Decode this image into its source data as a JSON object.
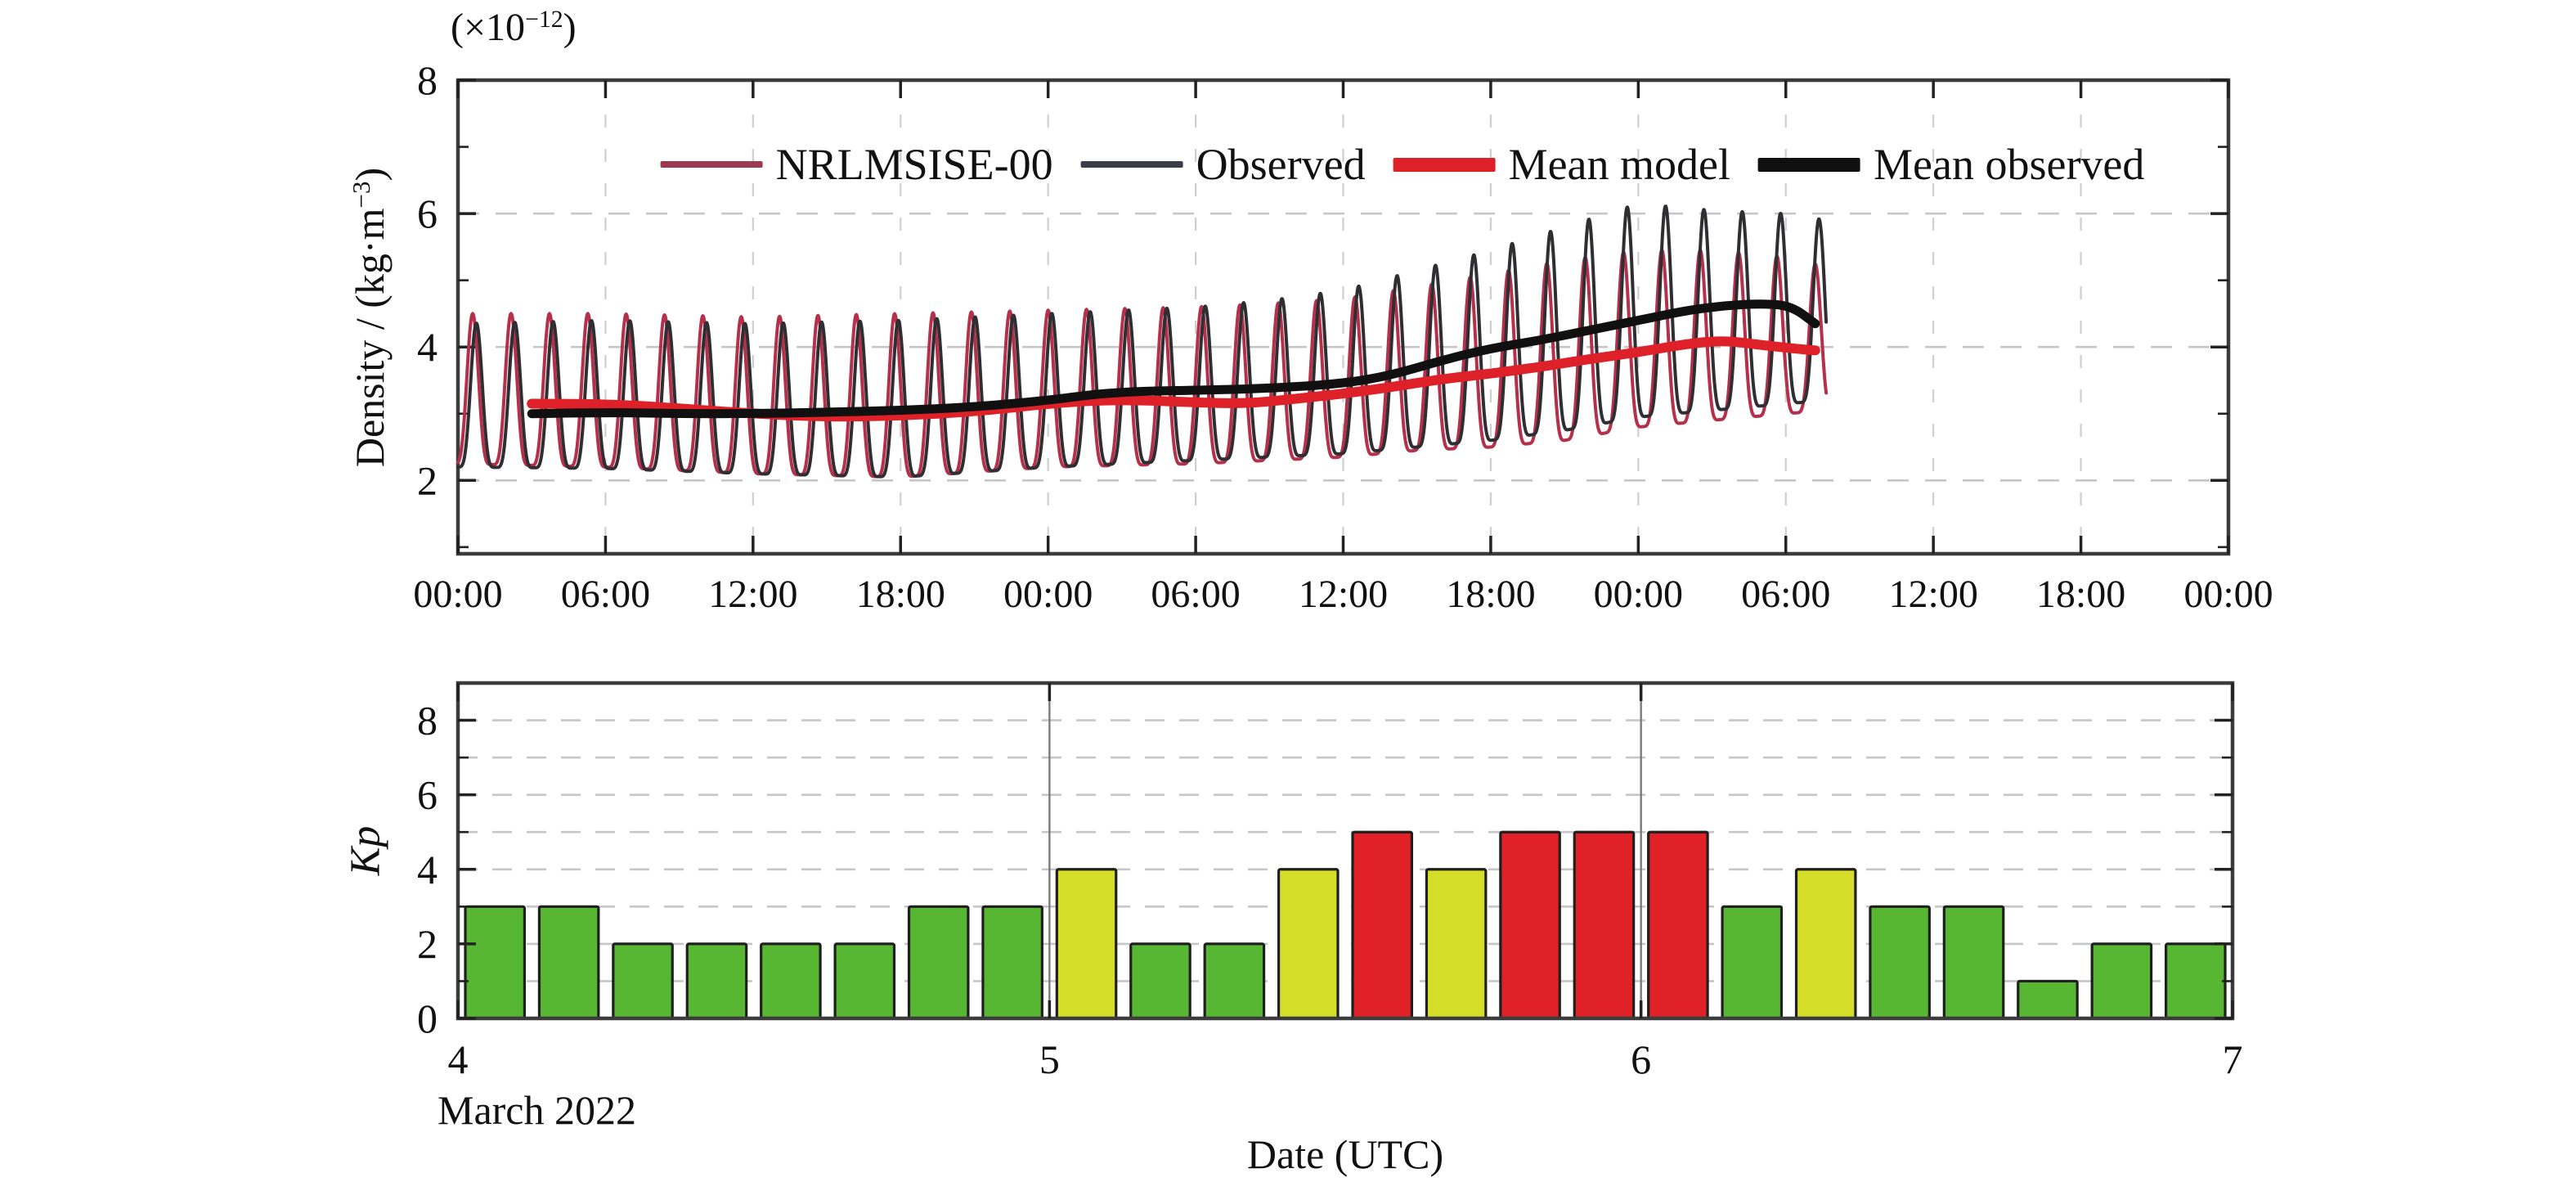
{
  "figure": {
    "background": "#ffffff",
    "border_color": "#3c3c3c",
    "grid_color": "#c6c6c6",
    "tick_color": "#222222",
    "text_color": "#111111"
  },
  "chart_data": [
    {
      "type": "line",
      "title": "",
      "ylabel": "Density / (kg·m⁻³)",
      "ylabel_prefix": "Density / (kg·m",
      "ylabel_sup": "−3",
      "ylabel_suffix": ")",
      "y_unit": "(×10⁻¹²)",
      "y_unit_prefix": "(×10",
      "y_unit_sup": "−12",
      "y_unit_suffix": ")",
      "xlabel": "",
      "xlim_hours": [
        0,
        72
      ],
      "x_tick_step_hours": 6,
      "x_tick_labels": [
        "00:00",
        "06:00",
        "12:00",
        "18:00",
        "00:00",
        "06:00",
        "12:00",
        "18:00",
        "00:00",
        "06:00",
        "12:00",
        "18:00",
        "00:00"
      ],
      "ylim": [
        0.9,
        8
      ],
      "y_ticks": [
        2,
        4,
        6,
        8
      ],
      "y_minor_ticks": [
        1,
        3,
        5,
        7
      ],
      "grid": true,
      "legend_position": "top-center",
      "oscillation": {
        "period_hours": 1.56,
        "first_peak_hour": 0.75,
        "sharpness": 2.3,
        "model_phase_lead_hours": 0.15,
        "end_hour": 55.66
      },
      "series": [
        {
          "name": "NRLMSISE-00",
          "kind": "oscillating",
          "style": "thin",
          "color": "#b5304a",
          "legend_color": "#9d3a52",
          "envelope": [
            [
              0,
              2.25,
              4.5
            ],
            [
              6,
              2.2,
              4.5
            ],
            [
              12,
              2.1,
              4.45
            ],
            [
              18,
              2.05,
              4.5
            ],
            [
              24,
              2.2,
              4.55
            ],
            [
              30,
              2.25,
              4.6
            ],
            [
              33,
              2.3,
              4.65
            ],
            [
              36,
              2.35,
              4.72
            ],
            [
              39,
              2.45,
              4.9
            ],
            [
              42,
              2.5,
              5.1
            ],
            [
              45,
              2.6,
              5.3
            ],
            [
              48,
              2.8,
              5.45
            ],
            [
              51,
              2.9,
              5.45
            ],
            [
              54,
              3.0,
              5.35
            ],
            [
              55.7,
              3.05,
              5.2
            ]
          ]
        },
        {
          "name": "Observed",
          "kind": "oscillating",
          "style": "thin",
          "color": "#2e2e33",
          "legend_color": "#3e3e46",
          "envelope": [
            [
              0,
              2.2,
              4.35
            ],
            [
              6,
              2.18,
              4.4
            ],
            [
              12,
              2.1,
              4.35
            ],
            [
              18,
              2.05,
              4.4
            ],
            [
              24,
              2.2,
              4.5
            ],
            [
              30,
              2.3,
              4.6
            ],
            [
              33,
              2.35,
              4.7
            ],
            [
              36,
              2.4,
              4.85
            ],
            [
              39,
              2.5,
              5.15
            ],
            [
              42,
              2.6,
              5.45
            ],
            [
              45,
              2.75,
              5.8
            ],
            [
              48,
              2.95,
              6.15
            ],
            [
              51,
              3.05,
              6.05
            ],
            [
              54,
              3.15,
              6.0
            ],
            [
              55.7,
              3.2,
              5.9
            ]
          ]
        },
        {
          "name": "Mean model",
          "kind": "mean",
          "style": "thick",
          "color": "#de2128",
          "legend_color": "#de2128",
          "points": [
            [
              3,
              3.15
            ],
            [
              6,
              3.15
            ],
            [
              9,
              3.08
            ],
            [
              12,
              3.0
            ],
            [
              15,
              2.95
            ],
            [
              18,
              2.97
            ],
            [
              21,
              3.03
            ],
            [
              24,
              3.15
            ],
            [
              26,
              3.2
            ],
            [
              28,
              3.2
            ],
            [
              30,
              3.17
            ],
            [
              32,
              3.15
            ],
            [
              34,
              3.22
            ],
            [
              36,
              3.3
            ],
            [
              38,
              3.4
            ],
            [
              40,
              3.52
            ],
            [
              42,
              3.6
            ],
            [
              44,
              3.7
            ],
            [
              46,
              3.82
            ],
            [
              48,
              3.92
            ],
            [
              50,
              4.05
            ],
            [
              51.5,
              4.1
            ],
            [
              53,
              4.03
            ],
            [
              54.5,
              3.97
            ],
            [
              55.2,
              3.95
            ]
          ]
        },
        {
          "name": "Mean observed",
          "kind": "mean",
          "style": "thick",
          "color": "#101010",
          "legend_color": "#101010",
          "points": [
            [
              3,
              3.0
            ],
            [
              6,
              3.02
            ],
            [
              9,
              3.0
            ],
            [
              12,
              3.0
            ],
            [
              15,
              3.02
            ],
            [
              18,
              3.05
            ],
            [
              21,
              3.1
            ],
            [
              24,
              3.2
            ],
            [
              26,
              3.3
            ],
            [
              28,
              3.34
            ],
            [
              30,
              3.35
            ],
            [
              33,
              3.38
            ],
            [
              36,
              3.45
            ],
            [
              38,
              3.58
            ],
            [
              40,
              3.8
            ],
            [
              42,
              3.98
            ],
            [
              44,
              4.1
            ],
            [
              46,
              4.25
            ],
            [
              48,
              4.4
            ],
            [
              50,
              4.55
            ],
            [
              51.5,
              4.62
            ],
            [
              53,
              4.65
            ],
            [
              54.2,
              4.62
            ],
            [
              55.2,
              4.35
            ]
          ]
        }
      ]
    },
    {
      "type": "bar",
      "title": "",
      "ylabel": "Kp",
      "xlabel": "Date (UTC)",
      "x_note": "March 2022",
      "x_tick_labels": [
        "4",
        "5",
        "6",
        "7"
      ],
      "start_day": 4,
      "end_day": 7,
      "bar_hours": 3,
      "ylim": [
        0,
        9
      ],
      "y_ticks": [
        0,
        2,
        4,
        6,
        8
      ],
      "y_minor_ticks": [
        1,
        3,
        5,
        7
      ],
      "grid": true,
      "values": [
        3,
        3,
        2,
        2,
        2,
        2,
        3,
        3,
        4,
        2,
        2,
        4,
        5,
        4,
        5,
        5,
        5,
        3,
        4,
        3,
        3,
        1,
        2,
        2
      ],
      "color_rules": {
        "quiet_max": 3,
        "quiet_color": "#57b733",
        "active_max": 4,
        "active_color": "#d4de28",
        "storm_color": "#e02127"
      },
      "bar_border_color": "#1f1f1f",
      "day_gridline_color": "#7a7a7a"
    }
  ]
}
